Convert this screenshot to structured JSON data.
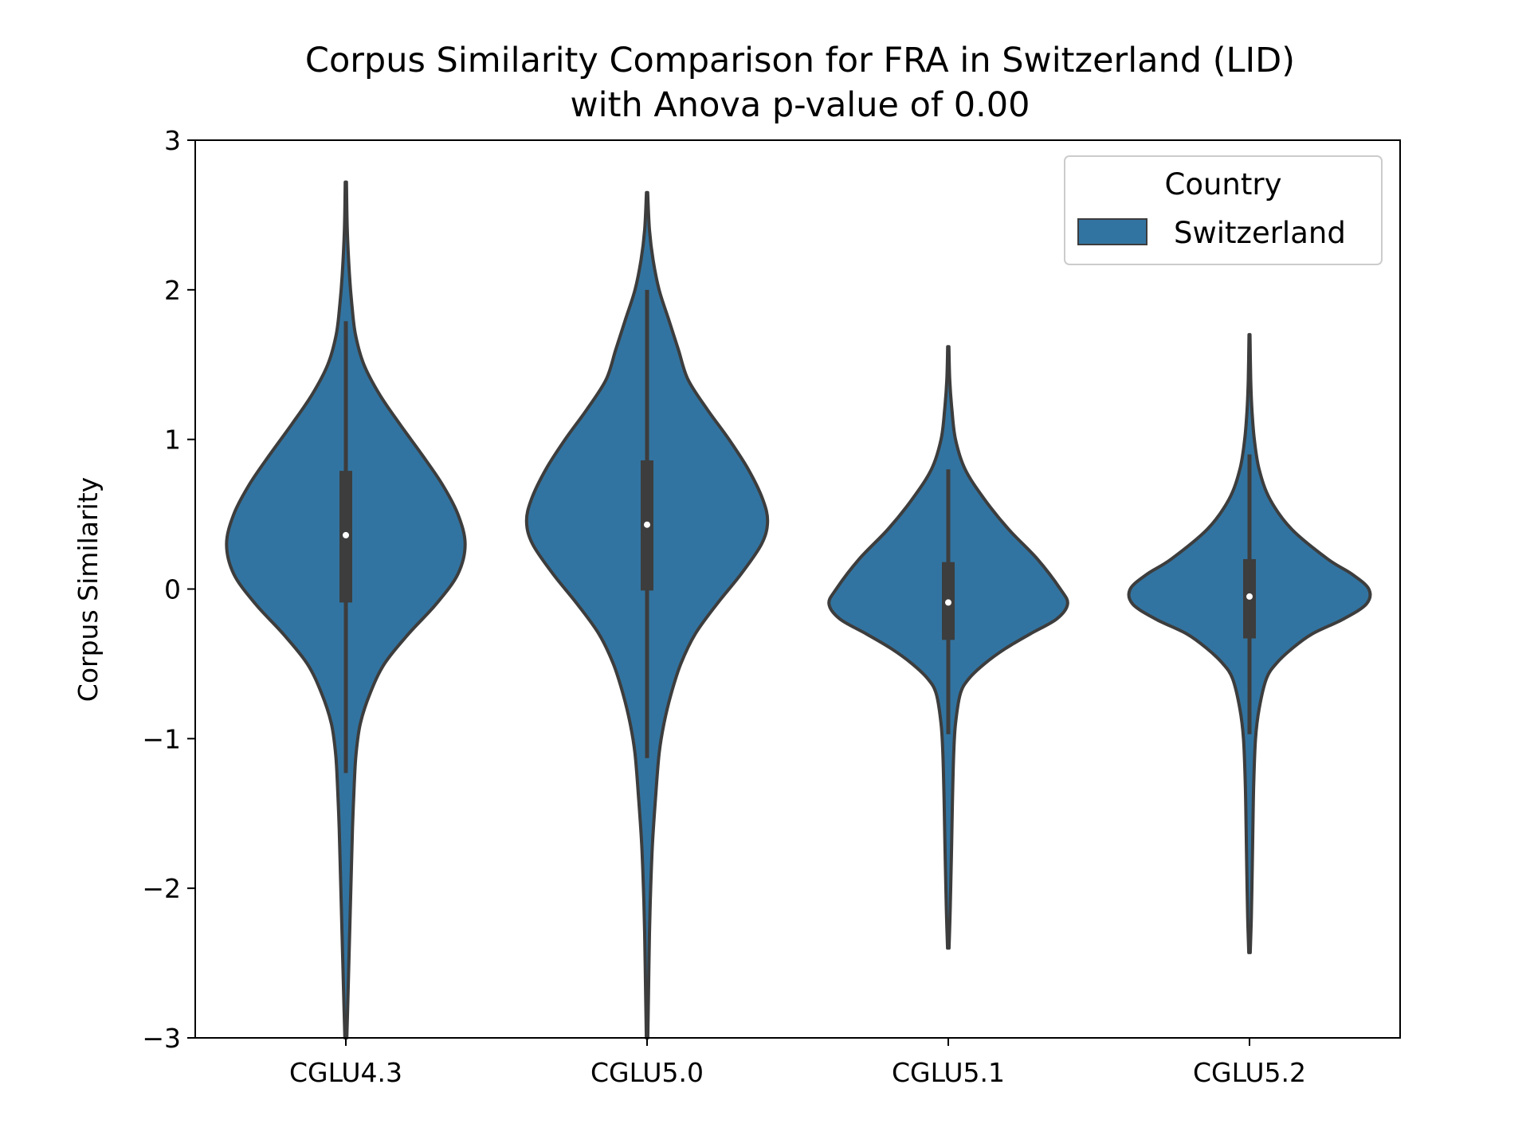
{
  "chart_data": {
    "type": "violin",
    "title": "Corpus Similarity Comparison for FRA in Switzerland (LID)",
    "subtitle": "with Anova p-value of 0.00",
    "xlabel": "",
    "ylabel": "Corpus Similarity",
    "ylim": [
      -3,
      3
    ],
    "yticks": [
      "−3",
      "−2",
      "−1",
      "0",
      "1",
      "2",
      "3"
    ],
    "ytick_values": [
      -3,
      -2,
      -1,
      0,
      1,
      2,
      3
    ],
    "grid": false,
    "legend": {
      "title": "Country",
      "position": "top-right",
      "entries": [
        "Switzerland"
      ]
    },
    "colors": {
      "fill": "#3274a1",
      "edge": "#3d3d3d",
      "box": "#3d3d3d",
      "median": "#ffffff"
    },
    "categories": [
      "CGLU4.3",
      "CGLU5.0",
      "CGLU5.1",
      "CGLU5.2"
    ],
    "series": [
      {
        "name": "Switzerland",
        "violins": [
          {
            "category": "CGLU4.3",
            "min": -3.0,
            "max": 2.72,
            "q1": -0.09,
            "median": 0.36,
            "q3": 0.79,
            "whisker_low": -1.23,
            "whisker_high": 1.79,
            "profile": [
              [
                2.72,
                0.005
              ],
              [
                2.4,
                0.012
              ],
              [
                2.1,
                0.03
              ],
              [
                1.9,
                0.05
              ],
              [
                1.7,
                0.08
              ],
              [
                1.5,
                0.15
              ],
              [
                1.3,
                0.28
              ],
              [
                1.1,
                0.45
              ],
              [
                0.9,
                0.63
              ],
              [
                0.7,
                0.8
              ],
              [
                0.5,
                0.93
              ],
              [
                0.3,
                0.99
              ],
              [
                0.1,
                0.93
              ],
              [
                -0.1,
                0.75
              ],
              [
                -0.3,
                0.52
              ],
              [
                -0.5,
                0.32
              ],
              [
                -0.7,
                0.2
              ],
              [
                -0.9,
                0.12
              ],
              [
                -1.1,
                0.085
              ],
              [
                -1.3,
                0.07
              ],
              [
                -1.6,
                0.055
              ],
              [
                -1.9,
                0.045
              ],
              [
                -2.2,
                0.035
              ],
              [
                -2.5,
                0.025
              ],
              [
                -2.8,
                0.015
              ],
              [
                -3.0,
                0.008
              ]
            ]
          },
          {
            "category": "CGLU5.0",
            "min": -3.0,
            "max": 2.65,
            "q1": -0.01,
            "median": 0.43,
            "q3": 0.86,
            "whisker_low": -1.13,
            "whisker_high": 2.0,
            "profile": [
              [
                2.65,
                0.005
              ],
              [
                2.4,
                0.02
              ],
              [
                2.2,
                0.05
              ],
              [
                2.0,
                0.1
              ],
              [
                1.8,
                0.18
              ],
              [
                1.6,
                0.26
              ],
              [
                1.4,
                0.34
              ],
              [
                1.2,
                0.5
              ],
              [
                1.0,
                0.68
              ],
              [
                0.8,
                0.84
              ],
              [
                0.6,
                0.96
              ],
              [
                0.45,
                1.0
              ],
              [
                0.3,
                0.95
              ],
              [
                0.1,
                0.78
              ],
              [
                -0.1,
                0.58
              ],
              [
                -0.3,
                0.4
              ],
              [
                -0.5,
                0.28
              ],
              [
                -0.7,
                0.2
              ],
              [
                -0.9,
                0.14
              ],
              [
                -1.1,
                0.1
              ],
              [
                -1.4,
                0.07
              ],
              [
                -1.7,
                0.045
              ],
              [
                -2.0,
                0.03
              ],
              [
                -2.3,
                0.02
              ],
              [
                -2.7,
                0.012
              ],
              [
                -3.0,
                0.006
              ]
            ]
          },
          {
            "category": "CGLU5.1",
            "min": -2.4,
            "max": 1.62,
            "q1": -0.34,
            "median": -0.09,
            "q3": 0.18,
            "whisker_low": -0.97,
            "whisker_high": 0.8,
            "profile": [
              [
                1.62,
                0.005
              ],
              [
                1.4,
                0.012
              ],
              [
                1.2,
                0.03
              ],
              [
                1.0,
                0.06
              ],
              [
                0.8,
                0.14
              ],
              [
                0.6,
                0.3
              ],
              [
                0.4,
                0.5
              ],
              [
                0.2,
                0.74
              ],
              [
                0.0,
                0.93
              ],
              [
                -0.1,
                0.99
              ],
              [
                -0.2,
                0.9
              ],
              [
                -0.3,
                0.68
              ],
              [
                -0.4,
                0.47
              ],
              [
                -0.5,
                0.3
              ],
              [
                -0.6,
                0.17
              ],
              [
                -0.7,
                0.1
              ],
              [
                -0.9,
                0.06
              ],
              [
                -1.1,
                0.045
              ],
              [
                -1.4,
                0.035
              ],
              [
                -1.7,
                0.028
              ],
              [
                -2.0,
                0.02
              ],
              [
                -2.2,
                0.014
              ],
              [
                -2.4,
                0.006
              ]
            ]
          },
          {
            "category": "CGLU5.2",
            "min": -2.43,
            "max": 1.7,
            "q1": -0.33,
            "median": -0.05,
            "q3": 0.2,
            "whisker_low": -0.97,
            "whisker_high": 0.9,
            "profile": [
              [
                1.7,
                0.004
              ],
              [
                1.4,
                0.01
              ],
              [
                1.2,
                0.02
              ],
              [
                1.0,
                0.04
              ],
              [
                0.8,
                0.08
              ],
              [
                0.6,
                0.17
              ],
              [
                0.4,
                0.35
              ],
              [
                0.2,
                0.65
              ],
              [
                0.1,
                0.85
              ],
              [
                0.0,
                0.99
              ],
              [
                -0.1,
                0.97
              ],
              [
                -0.2,
                0.78
              ],
              [
                -0.3,
                0.52
              ],
              [
                -0.4,
                0.35
              ],
              [
                -0.5,
                0.22
              ],
              [
                -0.6,
                0.14
              ],
              [
                -0.8,
                0.08
              ],
              [
                -1.0,
                0.05
              ],
              [
                -1.3,
                0.035
              ],
              [
                -1.6,
                0.028
              ],
              [
                -1.9,
                0.022
              ],
              [
                -2.2,
                0.015
              ],
              [
                -2.43,
                0.006
              ]
            ]
          }
        ]
      }
    ]
  }
}
